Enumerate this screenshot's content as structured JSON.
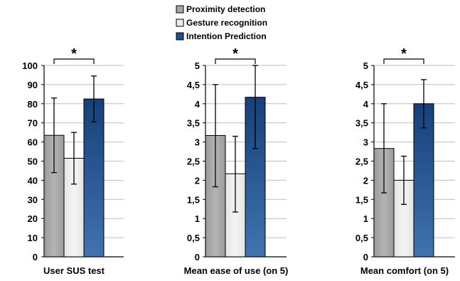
{
  "legend": [
    {
      "label": "Proximity detection",
      "color": "#a6a6a6"
    },
    {
      "label": "Gesture recognition",
      "color": "#ececec"
    },
    {
      "label": "Intention Prediction",
      "color": "#1f4e8c"
    }
  ],
  "chart_data": [
    {
      "type": "bar",
      "xlabel": "User SUS test",
      "ylim": [
        0,
        100
      ],
      "yticks": [
        "0",
        "10",
        "20",
        "30",
        "40",
        "50",
        "60",
        "70",
        "80",
        "90",
        "100"
      ],
      "grid": true,
      "series": [
        {
          "name": "Proximity detection",
          "value": 63.5,
          "error_low": 44,
          "error_high": 83
        },
        {
          "name": "Gesture recognition",
          "value": 51.5,
          "error_low": 38,
          "error_high": 65
        },
        {
          "name": "Intention Prediction",
          "value": 82.5,
          "error_low": 70.5,
          "error_high": 94.5
        }
      ],
      "significance": {
        "label": "*",
        "between": [
          "Proximity detection",
          "Intention Prediction"
        ]
      }
    },
    {
      "type": "bar",
      "xlabel": "Mean ease of use (on 5)",
      "ylim": [
        0,
        5
      ],
      "yticks": [
        "0",
        "0,5",
        "1",
        "1,5",
        "2",
        "2,5",
        "3",
        "3,5",
        "4",
        "4,5",
        "5"
      ],
      "grid": true,
      "series": [
        {
          "name": "Proximity detection",
          "value": 3.17,
          "error_low": 1.83,
          "error_high": 4.5
        },
        {
          "name": "Gesture recognition",
          "value": 2.17,
          "error_low": 1.17,
          "error_high": 3.15
        },
        {
          "name": "Intention Prediction",
          "value": 4.17,
          "error_low": 2.83,
          "error_high": 5.0
        }
      ],
      "significance": {
        "label": "*",
        "between": [
          "Proximity detection",
          "Intention Prediction"
        ]
      }
    },
    {
      "type": "bar",
      "xlabel": "Mean comfort (on 5)",
      "ylim": [
        0,
        5
      ],
      "yticks": [
        "0",
        "0,5",
        "1",
        "1,5",
        "2",
        "2,5",
        "3",
        "3,5",
        "4",
        "4,5",
        "5"
      ],
      "grid": true,
      "series": [
        {
          "name": "Proximity detection",
          "value": 2.83,
          "error_low": 1.67,
          "error_high": 4.0
        },
        {
          "name": "Gesture recognition",
          "value": 2.0,
          "error_low": 1.37,
          "error_high": 2.63
        },
        {
          "name": "Intention Prediction",
          "value": 4.0,
          "error_low": 3.37,
          "error_high": 4.63
        }
      ],
      "significance": {
        "label": "*",
        "between": [
          "Proximity detection",
          "Intention Prediction"
        ]
      }
    }
  ]
}
